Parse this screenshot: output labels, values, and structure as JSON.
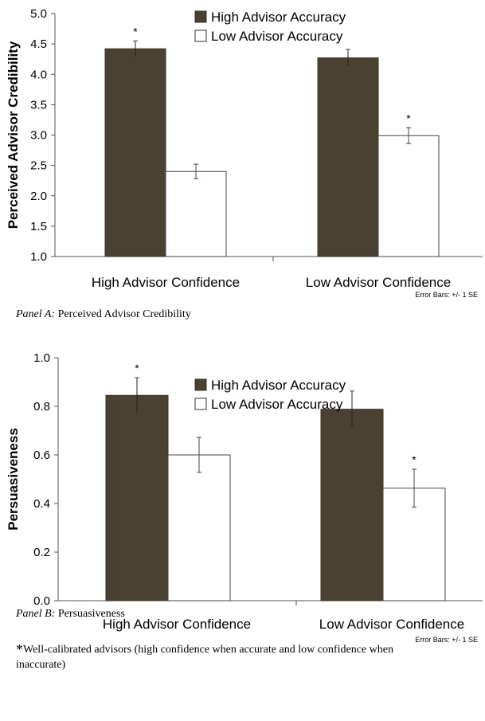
{
  "chart_data": [
    {
      "type": "bar",
      "panel_label": "Panel A:",
      "panel_title": "Perceived Advisor Credibility",
      "ylabel": "Perceived Advisor Credibility",
      "xlabel": "",
      "ylim": [
        1.0,
        5.0
      ],
      "yticks": [
        "1.0",
        "1.5",
        "2.0",
        "2.5",
        "3.0",
        "3.5",
        "4.0",
        "4.5",
        "5.0"
      ],
      "ytick_values": [
        1.0,
        1.5,
        2.0,
        2.5,
        3.0,
        3.5,
        4.0,
        4.5,
        5.0
      ],
      "categories": [
        "High Advisor Confidence",
        "Low Advisor Confidence"
      ],
      "series": [
        {
          "name": "High Advisor Accuracy",
          "color": "#4a4130",
          "values": [
            4.42,
            4.27
          ],
          "se": [
            0.13,
            0.14
          ],
          "marks": [
            "*",
            ""
          ]
        },
        {
          "name": "Low Advisor Accuracy",
          "color": "#ffffff",
          "values": [
            2.4,
            2.99
          ],
          "se": [
            0.12,
            0.13
          ],
          "marks": [
            "",
            "*"
          ]
        }
      ],
      "legend_position": "top-center",
      "note": "Error Bars: +/- 1 SE",
      "grid": false
    },
    {
      "type": "bar",
      "panel_label": "Panel B:",
      "panel_title": "Persuasiveness",
      "ylabel": "Persuasiveness",
      "xlabel": "",
      "ylim": [
        0.0,
        1.0
      ],
      "yticks": [
        "0.0",
        "0.2",
        "0.4",
        "0.6",
        "0.8",
        "1.0"
      ],
      "ytick_values": [
        0.0,
        0.2,
        0.4,
        0.6,
        0.8,
        1.0
      ],
      "categories": [
        "High Advisor Confidence",
        "Low Advisor Confidence"
      ],
      "series": [
        {
          "name": "High Advisor Accuracy",
          "color": "#4a4130",
          "values": [
            0.845,
            0.788
          ],
          "se": [
            0.073,
            0.075
          ],
          "marks": [
            "*",
            ""
          ]
        },
        {
          "name": "Low Advisor Accuracy",
          "color": "#ffffff",
          "values": [
            0.6,
            0.463
          ],
          "se": [
            0.072,
            0.078
          ],
          "marks": [
            "",
            "*"
          ]
        }
      ],
      "legend_position": "top-center",
      "note": "Error Bars: +/- 1 SE",
      "grid": false
    }
  ],
  "footnote": {
    "symbol": "*",
    "text": "Well-calibrated advisors (high confidence when accurate and low confidence when inaccurate)"
  }
}
